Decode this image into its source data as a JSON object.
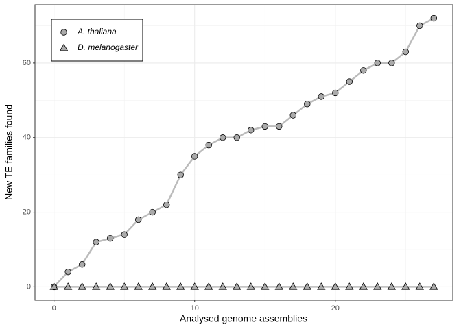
{
  "chart_data": {
    "type": "line",
    "x_label": "Analysed genome assemblies",
    "y_label": "New TE families found",
    "x": [
      0,
      1,
      2,
      3,
      4,
      5,
      6,
      7,
      8,
      9,
      10,
      11,
      12,
      13,
      14,
      15,
      16,
      17,
      18,
      19,
      20,
      21,
      22,
      23,
      24,
      25,
      26,
      27
    ],
    "series": [
      {
        "name": "A. thaliana",
        "color": "#aaaaaa",
        "line_color": "#bbbbbb",
        "marker": "circle",
        "values": [
          0,
          4,
          6,
          12,
          13,
          14,
          18,
          20,
          22,
          30,
          35,
          38,
          40,
          40,
          42,
          43,
          43,
          46,
          49,
          51,
          52,
          55,
          58,
          60,
          60,
          63,
          70,
          72
        ]
      },
      {
        "name": "D. melanogaster",
        "color": "#aaaaaa",
        "line_color": "#bbbbbb",
        "marker": "triangle",
        "values": [
          0,
          0,
          0,
          0,
          0,
          0,
          0,
          0,
          0,
          0,
          0,
          0,
          0,
          0,
          0,
          0,
          0,
          0,
          0,
          0,
          0,
          0,
          0,
          0,
          0,
          0,
          0,
          0
        ]
      }
    ],
    "xlim": [
      -1.35,
      28.35
    ],
    "ylim": [
      -3.6,
      75.6
    ],
    "xticks": [
      0,
      10,
      20
    ],
    "yticks": [
      0,
      20,
      40,
      60
    ],
    "xminorticks": [
      5,
      15,
      25
    ],
    "yminorticks": [
      10,
      30,
      50,
      70
    ],
    "grid": true,
    "legend_position": "top-left"
  }
}
